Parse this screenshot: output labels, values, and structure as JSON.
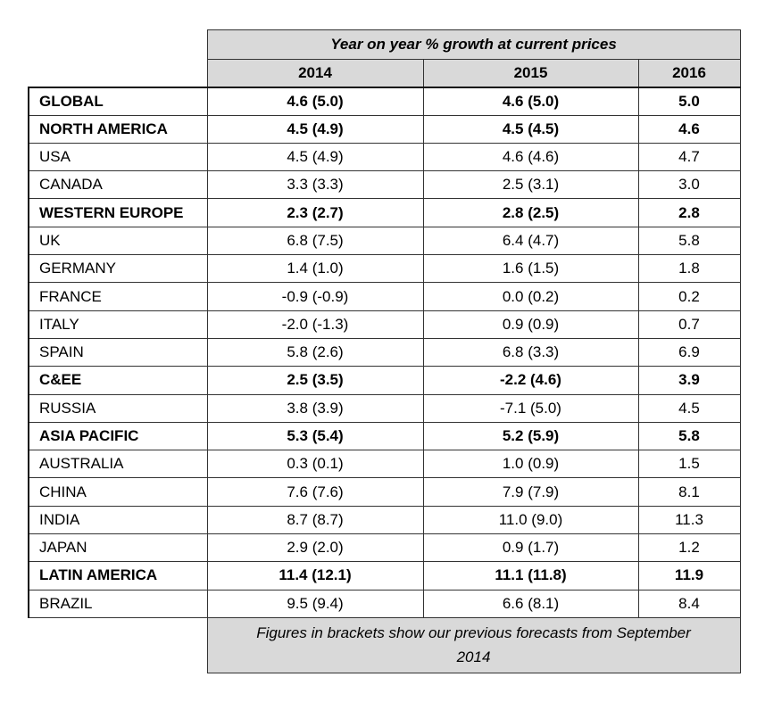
{
  "chart_data": {
    "type": "table",
    "title": "Year on year % growth at current prices",
    "columns": [
      "2014",
      "2015",
      "2016"
    ],
    "rows": [
      {
        "name": "GLOBAL",
        "bold": true,
        "values": [
          "4.6 (5.0)",
          "4.6 (5.0)",
          "5.0"
        ]
      },
      {
        "name": "NORTH AMERICA",
        "bold": true,
        "values": [
          "4.5 (4.9)",
          "4.5 (4.5)",
          "4.6"
        ]
      },
      {
        "name": "USA",
        "bold": false,
        "values": [
          "4.5 (4.9)",
          "4.6 (4.6)",
          "4.7"
        ]
      },
      {
        "name": "CANADA",
        "bold": false,
        "values": [
          "3.3 (3.3)",
          "2.5 (3.1)",
          "3.0"
        ]
      },
      {
        "name": "WESTERN EUROPE",
        "bold": true,
        "values": [
          "2.3 (2.7)",
          "2.8 (2.5)",
          "2.8"
        ]
      },
      {
        "name": "UK",
        "bold": false,
        "values": [
          "6.8 (7.5)",
          "6.4 (4.7)",
          "5.8"
        ]
      },
      {
        "name": "GERMANY",
        "bold": false,
        "values": [
          "1.4 (1.0)",
          "1.6 (1.5)",
          "1.8"
        ]
      },
      {
        "name": "FRANCE",
        "bold": false,
        "values": [
          "-0.9 (-0.9)",
          "0.0 (0.2)",
          "0.2"
        ]
      },
      {
        "name": "ITALY",
        "bold": false,
        "values": [
          "-2.0 (-1.3)",
          "0.9 (0.9)",
          "0.7"
        ]
      },
      {
        "name": "SPAIN",
        "bold": false,
        "values": [
          "5.8 (2.6)",
          "6.8 (3.3)",
          "6.9"
        ]
      },
      {
        "name": "C&EE",
        "bold": true,
        "values": [
          "2.5 (3.5)",
          "-2.2 (4.6)",
          "3.9"
        ]
      },
      {
        "name": "RUSSIA",
        "bold": false,
        "values": [
          "3.8 (3.9)",
          "-7.1 (5.0)",
          "4.5"
        ]
      },
      {
        "name": "ASIA PACIFIC",
        "bold": true,
        "values": [
          "5.3 (5.4)",
          "5.2 (5.9)",
          "5.8"
        ]
      },
      {
        "name": "AUSTRALIA",
        "bold": false,
        "values": [
          "0.3 (0.1)",
          "1.0 (0.9)",
          "1.5"
        ]
      },
      {
        "name": "CHINA",
        "bold": false,
        "values": [
          "7.6 (7.6)",
          "7.9 (7.9)",
          "8.1"
        ]
      },
      {
        "name": "INDIA",
        "bold": false,
        "values": [
          "8.7 (8.7)",
          "11.0 (9.0)",
          "11.3"
        ]
      },
      {
        "name": "JAPAN",
        "bold": false,
        "values": [
          "2.9 (2.0)",
          "0.9 (1.7)",
          "1.2"
        ]
      },
      {
        "name": "LATIN AMERICA",
        "bold": true,
        "values": [
          "11.4 (12.1)",
          "11.1 (11.8)",
          "11.9"
        ]
      },
      {
        "name": "BRAZIL",
        "bold": false,
        "values": [
          "9.5 (9.4)",
          "6.6 (8.1)",
          "8.4"
        ]
      }
    ],
    "footnote": "Figures in brackets show our previous forecasts from September 2014"
  }
}
